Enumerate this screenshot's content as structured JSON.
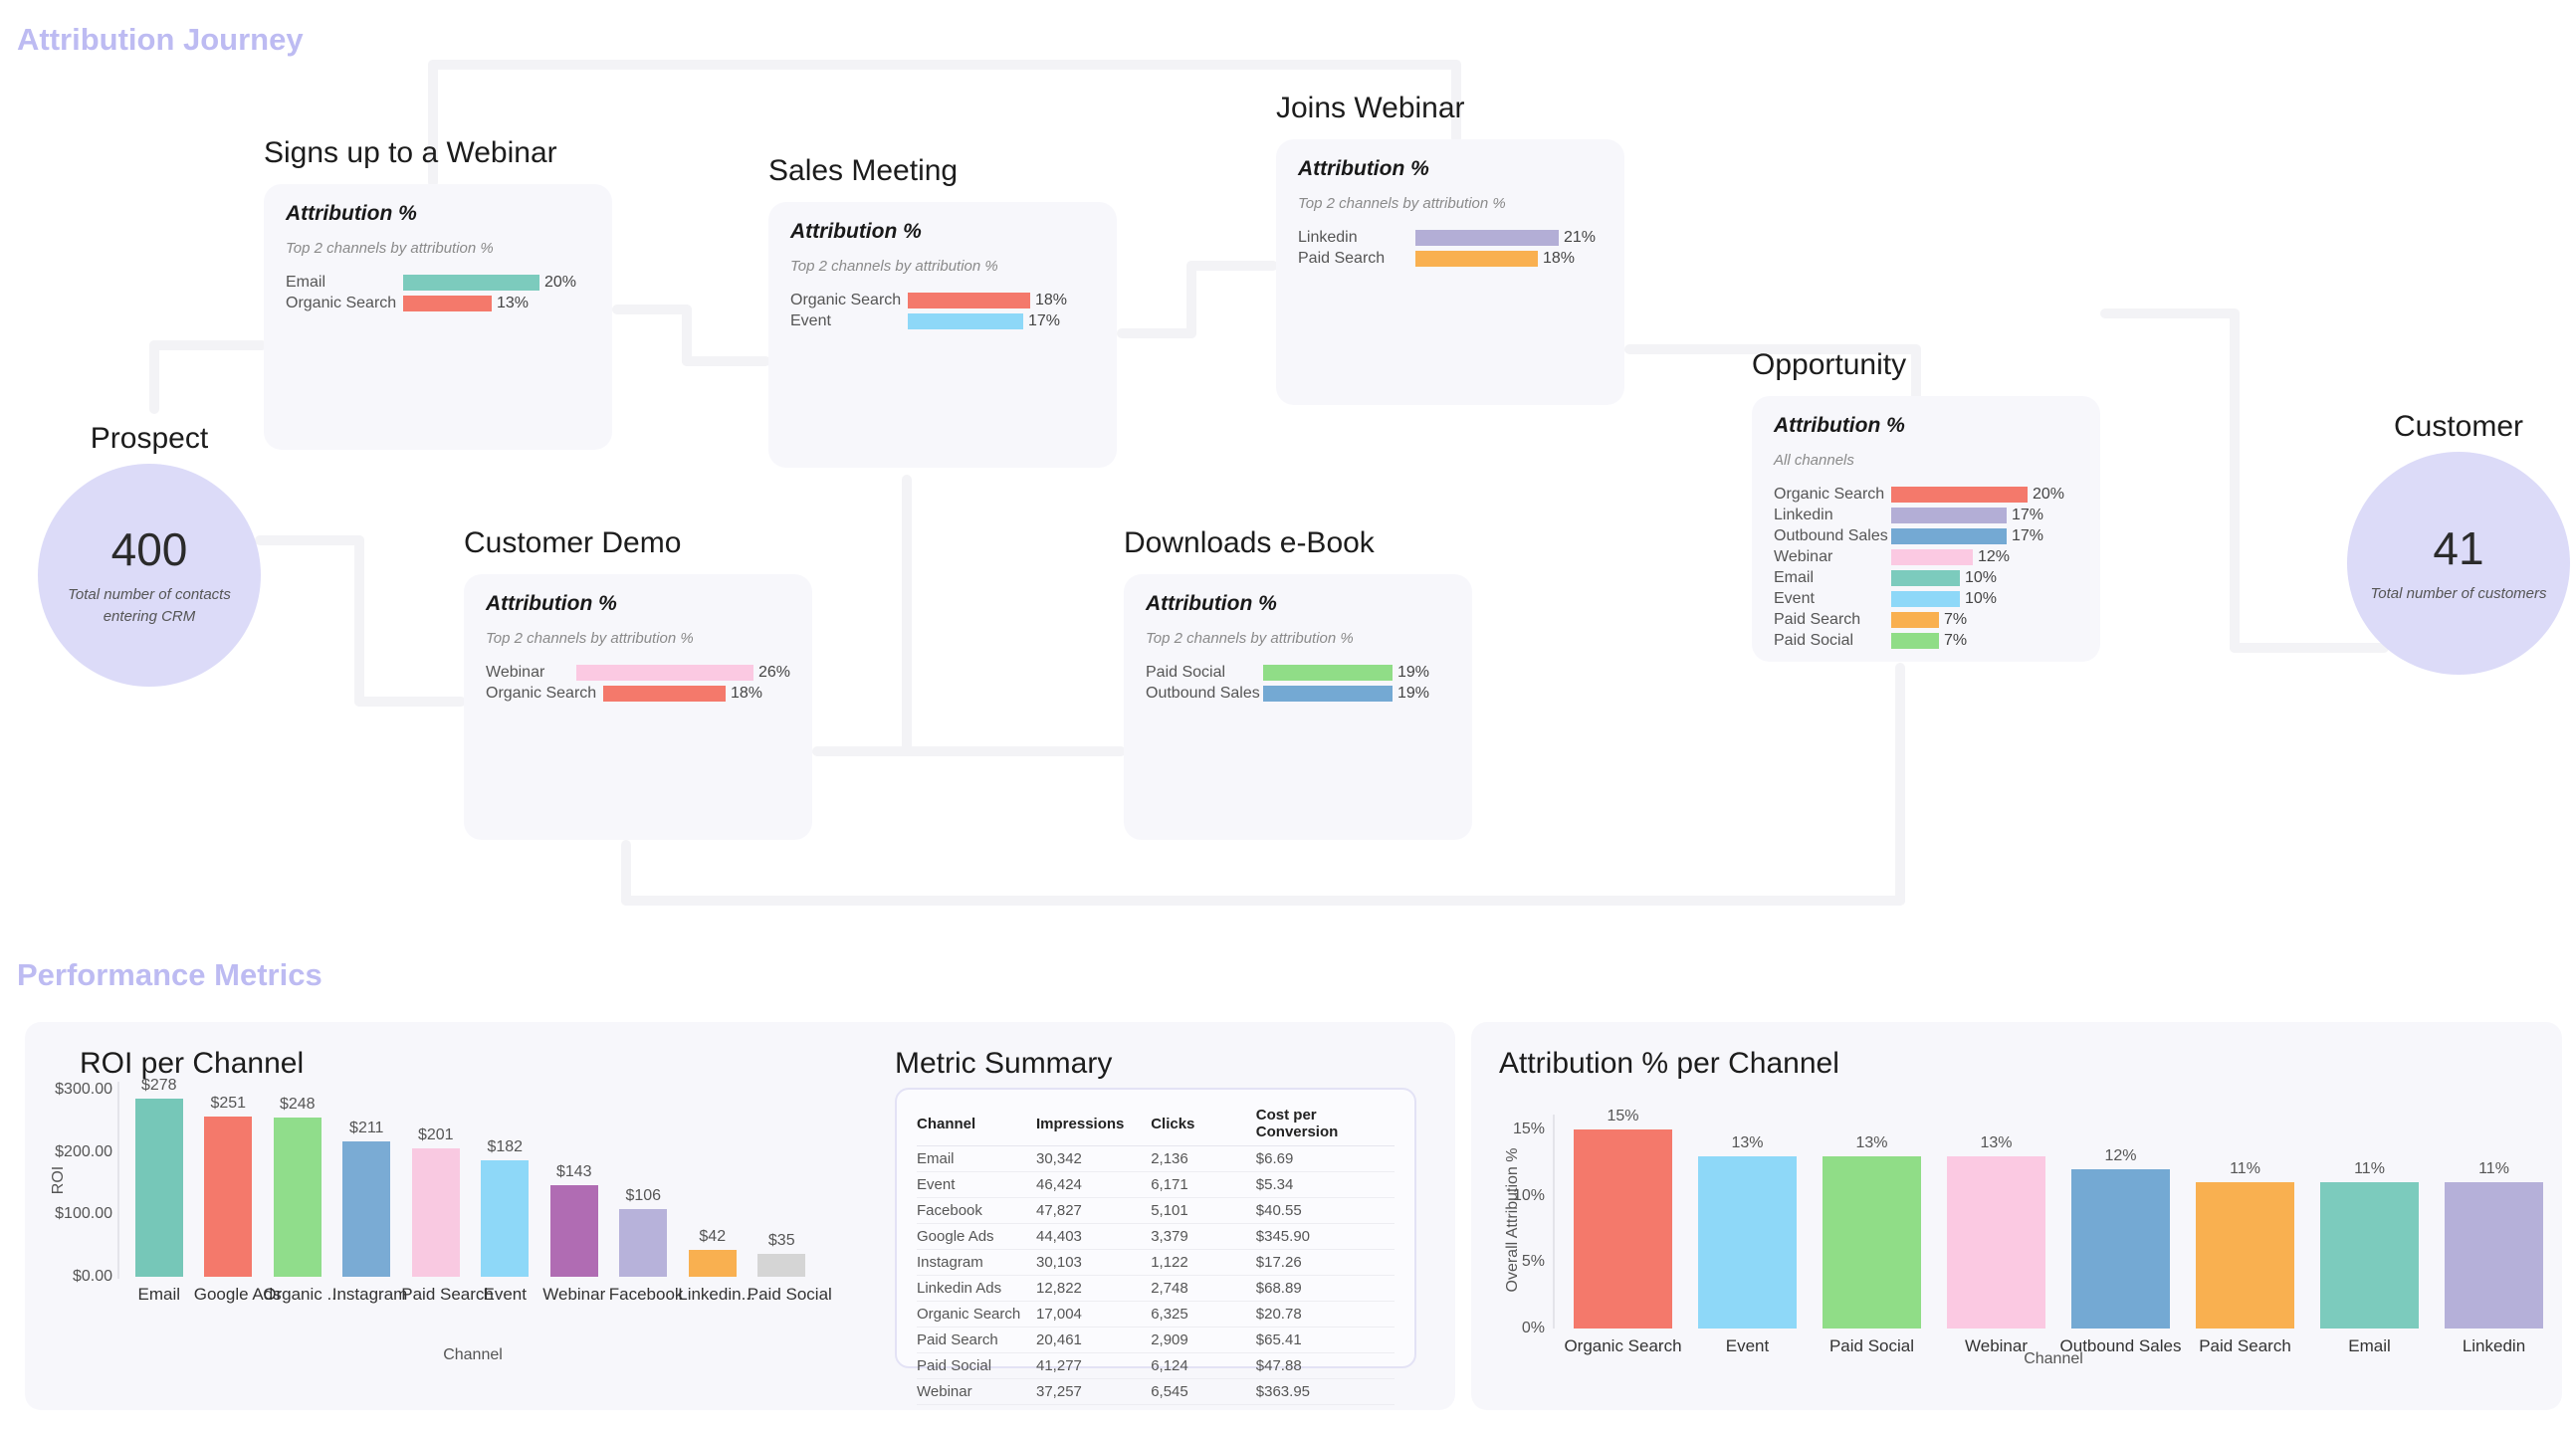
{
  "sections": {
    "journey_title": "Attribution Journey",
    "metrics_title": "Performance Metrics",
    "accent_color": "#bdbbf2"
  },
  "journey": {
    "prospect": {
      "title": "Prospect",
      "value": "400",
      "caption": "Total number of contacts entering CRM"
    },
    "customer": {
      "title": "Customer",
      "value": "41",
      "caption": "Total number of customers"
    },
    "cards": [
      {
        "id": "signs_up",
        "title": "Signs up to a Webinar",
        "head": "Attribution %",
        "subtitle": "Top 2 channels by attribution %",
        "rows": [
          {
            "label": "Email",
            "pct": 20,
            "pct_label": "20%",
            "color": "#7ccbbd"
          },
          {
            "label": "Organic Search",
            "pct": 13,
            "pct_label": "13%",
            "color": "#f4796b"
          }
        ]
      },
      {
        "id": "sales_meeting",
        "title": "Sales Meeting",
        "head": "Attribution %",
        "subtitle": "Top 2 channels by attribution %",
        "rows": [
          {
            "label": "Organic Search",
            "pct": 18,
            "pct_label": "18%",
            "color": "#f4796b"
          },
          {
            "label": "Event",
            "pct": 17,
            "pct_label": "17%",
            "color": "#8ed8f8"
          }
        ]
      },
      {
        "id": "joins_webinar",
        "title": "Joins Webinar",
        "head": "Attribution %",
        "subtitle": "Top 2 channels by attribution %",
        "rows": [
          {
            "label": "Linkedin",
            "pct": 21,
            "pct_label": "21%",
            "color": "#b3aed6"
          },
          {
            "label": "Paid Search",
            "pct": 18,
            "pct_label": "18%",
            "color": "#f9b050"
          }
        ]
      },
      {
        "id": "customer_demo",
        "title": "Customer Demo",
        "head": "Attribution %",
        "subtitle": "Top 2 channels by attribution %",
        "rows": [
          {
            "label": "Webinar",
            "pct": 26,
            "pct_label": "26%",
            "color": "#fbc9e2"
          },
          {
            "label": "Organic Search",
            "pct": 18,
            "pct_label": "18%",
            "color": "#f4796b"
          }
        ]
      },
      {
        "id": "downloads_ebook",
        "title": "Downloads e-Book",
        "head": "Attribution %",
        "subtitle": "Top 2 channels by attribution %",
        "rows": [
          {
            "label": "Paid Social",
            "pct": 19,
            "pct_label": "19%",
            "color": "#90dd87"
          },
          {
            "label": "Outbound Sales",
            "pct": 19,
            "pct_label": "19%",
            "color": "#74a9d3"
          }
        ]
      },
      {
        "id": "opportunity",
        "title": "Opportunity",
        "head": "Attribution %",
        "subtitle": "All channels",
        "rows": [
          {
            "label": "Organic Search",
            "pct": 20,
            "pct_label": "20%",
            "color": "#f4796b"
          },
          {
            "label": "Linkedin",
            "pct": 17,
            "pct_label": "17%",
            "color": "#b3aed6"
          },
          {
            "label": "Outbound Sales",
            "pct": 17,
            "pct_label": "17%",
            "color": "#74a9d3"
          },
          {
            "label": "Webinar",
            "pct": 12,
            "pct_label": "12%",
            "color": "#fbc9e2"
          },
          {
            "label": "Email",
            "pct": 10,
            "pct_label": "10%",
            "color": "#7ccbbd"
          },
          {
            "label": "Event",
            "pct": 10,
            "pct_label": "10%",
            "color": "#8ed8f8"
          },
          {
            "label": "Paid Search",
            "pct": 7,
            "pct_label": "7%",
            "color": "#f9b050"
          },
          {
            "label": "Paid Social",
            "pct": 7,
            "pct_label": "7%",
            "color": "#90dd87"
          }
        ]
      }
    ]
  },
  "chart_data": [
    {
      "type": "bar",
      "title": "ROI per Channel",
      "xlabel": "Channel",
      "ylabel": "ROI",
      "ylim": [
        0,
        300
      ],
      "yticks": [
        "$300.00",
        "$200.00",
        "$100.00",
        "$0.00"
      ],
      "grid": false,
      "legend": "none",
      "categories": [
        "Email",
        "Google Ads",
        "Organic ...",
        "Instagram",
        "Paid Search",
        "Event",
        "Webinar",
        "Facebook",
        "Linkedin...",
        "Paid Social"
      ],
      "values": [
        278,
        251,
        248,
        211,
        201,
        182,
        143,
        106,
        42,
        35
      ],
      "value_labels": [
        "$278",
        "$251",
        "$248",
        "$211",
        "$201",
        "$182",
        "$143",
        "$106",
        "$42",
        "$35"
      ],
      "colors": [
        "#76c7b8",
        "#f4796b",
        "#90dd8b",
        "#7aabd4",
        "#f9c9e1",
        "#8ed8f8",
        "#b06cb3",
        "#b7b2da",
        "#f9b050",
        "#d5d5d5"
      ]
    },
    {
      "type": "bar",
      "title": "Attribution % per Channel",
      "xlabel": "Channel",
      "ylabel": "Overall Attribution %",
      "ylim": [
        0,
        17
      ],
      "yticks": [
        "15%",
        "10%",
        "5%",
        "0%"
      ],
      "grid": false,
      "legend": "none",
      "categories": [
        "Organic Search",
        "Event",
        "Paid Social",
        "Webinar",
        "Outbound Sales",
        "Paid Search",
        "Email",
        "Linkedin"
      ],
      "values": [
        15,
        13,
        13,
        13,
        12,
        11,
        11,
        11
      ],
      "value_labels": [
        "15%",
        "13%",
        "13%",
        "13%",
        "12%",
        "11%",
        "11%",
        "11%"
      ],
      "colors": [
        "#f4796b",
        "#8ed8f8",
        "#90dd87",
        "#fbc9e2",
        "#74a9d3",
        "#f9b050",
        "#7ccbbd",
        "#b5b0d9"
      ]
    }
  ],
  "metric_table": {
    "title": "Metric Summary",
    "headers": [
      "Channel",
      "Impressions",
      "Clicks",
      "Cost per Conversion"
    ],
    "rows": [
      [
        "Email",
        "30,342",
        "2,136",
        "$6.69"
      ],
      [
        "Event",
        "46,424",
        "6,171",
        "$5.34"
      ],
      [
        "Facebook",
        "47,827",
        "5,101",
        "$40.55"
      ],
      [
        "Google Ads",
        "44,403",
        "3,379",
        "$345.90"
      ],
      [
        "Instagram",
        "30,103",
        "1,122",
        "$17.26"
      ],
      [
        "Linkedin Ads",
        "12,822",
        "2,748",
        "$68.89"
      ],
      [
        "Organic Search",
        "17,004",
        "6,325",
        "$20.78"
      ],
      [
        "Paid Search",
        "20,461",
        "2,909",
        "$65.41"
      ],
      [
        "Paid Social",
        "41,277",
        "6,124",
        "$47.88"
      ],
      [
        "Webinar",
        "37,257",
        "6,545",
        "$363.95"
      ]
    ]
  }
}
